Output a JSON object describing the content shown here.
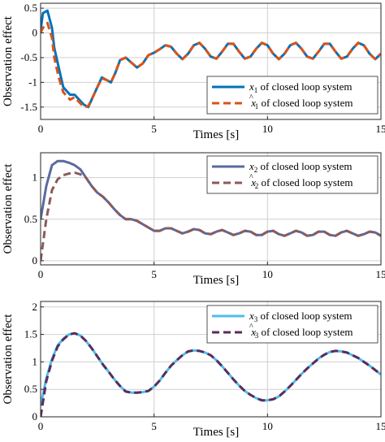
{
  "chart_data": [
    {
      "type": "line",
      "ylabel": "Observation effect",
      "xlabel": "Times [s]",
      "xlim": [
        0,
        15
      ],
      "ylim": [
        -1.75,
        0.6
      ],
      "xticks": [
        0,
        5,
        10,
        15
      ],
      "yticks": [
        0.5,
        0,
        -0.5,
        -1,
        -1.5
      ],
      "ytick_labels": [
        "0.5",
        "0",
        "-0.5",
        "-1",
        "-1.5"
      ],
      "grid": true,
      "legend_position": "bottom-right",
      "series": [
        {
          "name": "x1 of closed loop system",
          "sym": "x",
          "hat": false,
          "sub": "1",
          "color": "#0072BD",
          "dash": "",
          "x": [
            0,
            0.1,
            0.3,
            0.5,
            0.6,
            0.8,
            1.0,
            1.3,
            1.5,
            1.7,
            1.9,
            2.1,
            2.3,
            2.5,
            2.7,
            2.9,
            3.1,
            3.3,
            3.5,
            3.75,
            4.0,
            4.25,
            4.5,
            4.75,
            5.0,
            5.25,
            5.5,
            5.75,
            6.0,
            6.25,
            6.5,
            6.75,
            7.0,
            7.25,
            7.5,
            7.75,
            8.0,
            8.25,
            8.5,
            8.75,
            9.0,
            9.25,
            9.5,
            9.75,
            10.0,
            10.25,
            10.5,
            10.75,
            11.0,
            11.25,
            11.5,
            11.75,
            12.0,
            12.25,
            12.5,
            12.75,
            13.0,
            13.25,
            13.5,
            13.75,
            14.0,
            14.25,
            14.5,
            14.75,
            15.0
          ],
          "y": [
            0.05,
            0.4,
            0.45,
            0.1,
            -0.3,
            -0.7,
            -1.1,
            -1.25,
            -1.25,
            -1.35,
            -1.45,
            -1.5,
            -1.3,
            -1.1,
            -0.9,
            -0.95,
            -1.0,
            -0.8,
            -0.55,
            -0.5,
            -0.6,
            -0.7,
            -0.62,
            -0.45,
            -0.4,
            -0.33,
            -0.25,
            -0.28,
            -0.42,
            -0.53,
            -0.42,
            -0.25,
            -0.2,
            -0.32,
            -0.48,
            -0.52,
            -0.38,
            -0.22,
            -0.22,
            -0.38,
            -0.52,
            -0.48,
            -0.32,
            -0.2,
            -0.25,
            -0.42,
            -0.53,
            -0.42,
            -0.25,
            -0.2,
            -0.32,
            -0.48,
            -0.52,
            -0.38,
            -0.22,
            -0.22,
            -0.38,
            -0.52,
            -0.48,
            -0.32,
            -0.2,
            -0.25,
            -0.42,
            -0.53,
            -0.42
          ]
        },
        {
          "name": "x̂1 of closed loop system",
          "sym": "x",
          "hat": true,
          "sub": "1",
          "color": "#D95319",
          "dash": "9 5",
          "x": [
            0,
            0.1,
            0.3,
            0.5,
            0.6,
            0.8,
            1.0,
            1.3,
            1.5,
            1.7,
            1.9,
            2.1,
            2.3,
            2.5,
            2.7,
            2.9,
            3.1,
            3.3,
            3.5,
            3.75,
            4.0,
            4.25,
            4.5,
            4.75,
            5.0,
            5.25,
            5.5,
            5.75,
            6.0,
            6.25,
            6.5,
            6.75,
            7.0,
            7.25,
            7.5,
            7.75,
            8.0,
            8.25,
            8.5,
            8.75,
            9.0,
            9.25,
            9.5,
            9.75,
            10.0,
            10.25,
            10.5,
            10.75,
            11.0,
            11.25,
            11.5,
            11.75,
            12.0,
            12.25,
            12.5,
            12.75,
            13.0,
            13.25,
            13.5,
            13.75,
            14.0,
            14.25,
            14.5,
            14.75,
            15.0
          ],
          "y": [
            0.0,
            0.1,
            0.2,
            -0.1,
            -0.5,
            -0.9,
            -1.2,
            -1.35,
            -1.3,
            -1.4,
            -1.5,
            -1.48,
            -1.3,
            -1.1,
            -0.92,
            -0.95,
            -1.0,
            -0.8,
            -0.55,
            -0.5,
            -0.6,
            -0.7,
            -0.62,
            -0.45,
            -0.4,
            -0.33,
            -0.25,
            -0.28,
            -0.42,
            -0.53,
            -0.42,
            -0.25,
            -0.2,
            -0.32,
            -0.48,
            -0.52,
            -0.38,
            -0.22,
            -0.22,
            -0.38,
            -0.52,
            -0.48,
            -0.32,
            -0.2,
            -0.25,
            -0.42,
            -0.53,
            -0.42,
            -0.25,
            -0.2,
            -0.32,
            -0.48,
            -0.52,
            -0.38,
            -0.22,
            -0.22,
            -0.38,
            -0.52,
            -0.48,
            -0.32,
            -0.2,
            -0.25,
            -0.42,
            -0.53,
            -0.42
          ]
        }
      ]
    },
    {
      "type": "line",
      "ylabel": "Observation effect",
      "xlabel": "Times [s]",
      "xlim": [
        0,
        15
      ],
      "ylim": [
        -0.05,
        1.3
      ],
      "xticks": [
        0,
        5,
        10,
        15
      ],
      "yticks": [
        1,
        0.5,
        0
      ],
      "ytick_labels": [
        "1",
        "0.5",
        "0"
      ],
      "grid": true,
      "legend_position": "top-right",
      "series": [
        {
          "name": "x2 of closed loop system",
          "sym": "x",
          "hat": false,
          "sub": "2",
          "color": "#5A6AA0",
          "dash": "",
          "x": [
            0,
            0.25,
            0.5,
            0.75,
            1.0,
            1.25,
            1.5,
            1.75,
            2.0,
            2.25,
            2.5,
            2.75,
            3.0,
            3.25,
            3.5,
            3.75,
            4.0,
            4.25,
            4.5,
            4.75,
            5.0,
            5.25,
            5.5,
            5.75,
            6.0,
            6.25,
            6.5,
            6.75,
            7.0,
            7.25,
            7.5,
            7.75,
            8.0,
            8.25,
            8.5,
            8.75,
            9.0,
            9.25,
            9.5,
            9.75,
            10.0,
            10.25,
            10.5,
            10.75,
            11.0,
            11.25,
            11.5,
            11.75,
            12.0,
            12.25,
            12.5,
            12.75,
            13.0,
            13.25,
            13.5,
            13.75,
            14.0,
            14.25,
            14.5,
            14.75,
            15.0
          ],
          "y": [
            0.5,
            0.9,
            1.15,
            1.2,
            1.2,
            1.18,
            1.15,
            1.1,
            1.0,
            0.9,
            0.82,
            0.77,
            0.7,
            0.62,
            0.55,
            0.5,
            0.5,
            0.48,
            0.44,
            0.4,
            0.36,
            0.36,
            0.39,
            0.39,
            0.36,
            0.33,
            0.35,
            0.38,
            0.37,
            0.33,
            0.32,
            0.35,
            0.37,
            0.34,
            0.31,
            0.33,
            0.36,
            0.35,
            0.31,
            0.31,
            0.35,
            0.36,
            0.32,
            0.3,
            0.33,
            0.36,
            0.34,
            0.3,
            0.31,
            0.35,
            0.35,
            0.31,
            0.3,
            0.34,
            0.36,
            0.33,
            0.3,
            0.32,
            0.35,
            0.34,
            0.3
          ]
        },
        {
          "name": "x̂2 of closed loop system",
          "sym": "x",
          "hat": true,
          "sub": "2",
          "color": "#8C5A5A",
          "dash": "9 5",
          "x": [
            0,
            0.25,
            0.5,
            0.75,
            1.0,
            1.25,
            1.5,
            1.75,
            2.0,
            2.25,
            2.5,
            2.75,
            3.0,
            3.25,
            3.5,
            3.75,
            4.0,
            4.25,
            4.5,
            4.75,
            5.0,
            5.25,
            5.5,
            5.75,
            6.0,
            6.25,
            6.5,
            6.75,
            7.0,
            7.25,
            7.5,
            7.75,
            8.0,
            8.25,
            8.5,
            8.75,
            9.0,
            9.25,
            9.5,
            9.75,
            10.0,
            10.25,
            10.5,
            10.75,
            11.0,
            11.25,
            11.5,
            11.75,
            12.0,
            12.25,
            12.5,
            12.75,
            13.0,
            13.25,
            13.5,
            13.75,
            14.0,
            14.25,
            14.5,
            14.75,
            15.0
          ],
          "y": [
            0.0,
            0.5,
            0.85,
            0.98,
            1.03,
            1.05,
            1.06,
            1.04,
            1.0,
            0.9,
            0.82,
            0.77,
            0.7,
            0.62,
            0.55,
            0.5,
            0.5,
            0.48,
            0.44,
            0.4,
            0.36,
            0.36,
            0.39,
            0.39,
            0.36,
            0.33,
            0.35,
            0.38,
            0.37,
            0.33,
            0.32,
            0.35,
            0.37,
            0.34,
            0.31,
            0.33,
            0.36,
            0.35,
            0.31,
            0.31,
            0.35,
            0.36,
            0.32,
            0.3,
            0.33,
            0.36,
            0.34,
            0.3,
            0.31,
            0.35,
            0.35,
            0.31,
            0.3,
            0.34,
            0.36,
            0.33,
            0.3,
            0.32,
            0.35,
            0.34,
            0.3
          ]
        }
      ]
    },
    {
      "type": "line",
      "ylabel": "Observation effect",
      "xlabel": "Times [s]",
      "xlim": [
        0,
        15
      ],
      "ylim": [
        0,
        2.1
      ],
      "xticks": [
        0,
        5,
        10,
        15
      ],
      "yticks": [
        2,
        1.5,
        1,
        0.5,
        0
      ],
      "ytick_labels": [
        "2",
        "1.5",
        "1",
        "0.5",
        "0"
      ],
      "grid": true,
      "legend_position": "top-right",
      "series": [
        {
          "name": "x3 of closed loop system",
          "sym": "x",
          "hat": false,
          "sub": "3",
          "color": "#4DBEEE",
          "dash": "",
          "x": [
            0,
            0.25,
            0.5,
            0.75,
            1.0,
            1.25,
            1.5,
            1.75,
            2.0,
            2.25,
            2.5,
            2.75,
            3.0,
            3.25,
            3.5,
            3.75,
            4.0,
            4.25,
            4.5,
            4.75,
            5.0,
            5.25,
            5.5,
            5.75,
            6.0,
            6.25,
            6.5,
            6.75,
            7.0,
            7.25,
            7.5,
            7.75,
            8.0,
            8.25,
            8.5,
            8.75,
            9.0,
            9.25,
            9.5,
            9.75,
            10.0,
            10.25,
            10.5,
            10.75,
            11.0,
            11.25,
            11.5,
            11.75,
            12.0,
            12.25,
            12.5,
            12.75,
            13.0,
            13.25,
            13.5,
            13.75,
            14.0,
            14.25,
            14.5,
            14.75,
            15.0
          ],
          "y": [
            0.2,
            0.7,
            1.05,
            1.3,
            1.42,
            1.5,
            1.52,
            1.48,
            1.38,
            1.25,
            1.1,
            0.95,
            0.82,
            0.68,
            0.56,
            0.46,
            0.44,
            0.44,
            0.45,
            0.47,
            0.55,
            0.66,
            0.8,
            0.93,
            1.03,
            1.12,
            1.19,
            1.21,
            1.2,
            1.17,
            1.12,
            1.03,
            0.92,
            0.8,
            0.68,
            0.57,
            0.47,
            0.4,
            0.34,
            0.3,
            0.3,
            0.32,
            0.37,
            0.46,
            0.56,
            0.67,
            0.78,
            0.88,
            0.97,
            1.06,
            1.13,
            1.18,
            1.2,
            1.19,
            1.17,
            1.12,
            1.07,
            1.0,
            0.93,
            0.85,
            0.77
          ]
        },
        {
          "name": "x̂3 of closed loop system",
          "sym": "x",
          "hat": true,
          "sub": "3",
          "color": "#5A2D5A",
          "dash": "9 5",
          "x": [
            0,
            0.25,
            0.5,
            0.75,
            1.0,
            1.25,
            1.5,
            1.75,
            2.0,
            2.25,
            2.5,
            2.75,
            3.0,
            3.25,
            3.5,
            3.75,
            4.0,
            4.25,
            4.5,
            4.75,
            5.0,
            5.25,
            5.5,
            5.75,
            6.0,
            6.25,
            6.5,
            6.75,
            7.0,
            7.25,
            7.5,
            7.75,
            8.0,
            8.25,
            8.5,
            8.75,
            9.0,
            9.25,
            9.5,
            9.75,
            10.0,
            10.25,
            10.5,
            10.75,
            11.0,
            11.25,
            11.5,
            11.75,
            12.0,
            12.25,
            12.5,
            12.75,
            13.0,
            13.25,
            13.5,
            13.75,
            14.0,
            14.25,
            14.5,
            14.75,
            15.0
          ],
          "y": [
            0.0,
            0.65,
            1.02,
            1.28,
            1.41,
            1.5,
            1.52,
            1.48,
            1.38,
            1.25,
            1.1,
            0.95,
            0.82,
            0.68,
            0.56,
            0.46,
            0.44,
            0.44,
            0.45,
            0.47,
            0.55,
            0.66,
            0.8,
            0.93,
            1.03,
            1.12,
            1.19,
            1.21,
            1.2,
            1.17,
            1.12,
            1.03,
            0.92,
            0.8,
            0.68,
            0.57,
            0.47,
            0.4,
            0.34,
            0.3,
            0.3,
            0.32,
            0.37,
            0.46,
            0.56,
            0.67,
            0.78,
            0.88,
            0.97,
            1.06,
            1.13,
            1.18,
            1.2,
            1.19,
            1.17,
            1.12,
            1.07,
            1.0,
            0.93,
            0.85,
            0.77
          ]
        }
      ]
    }
  ]
}
